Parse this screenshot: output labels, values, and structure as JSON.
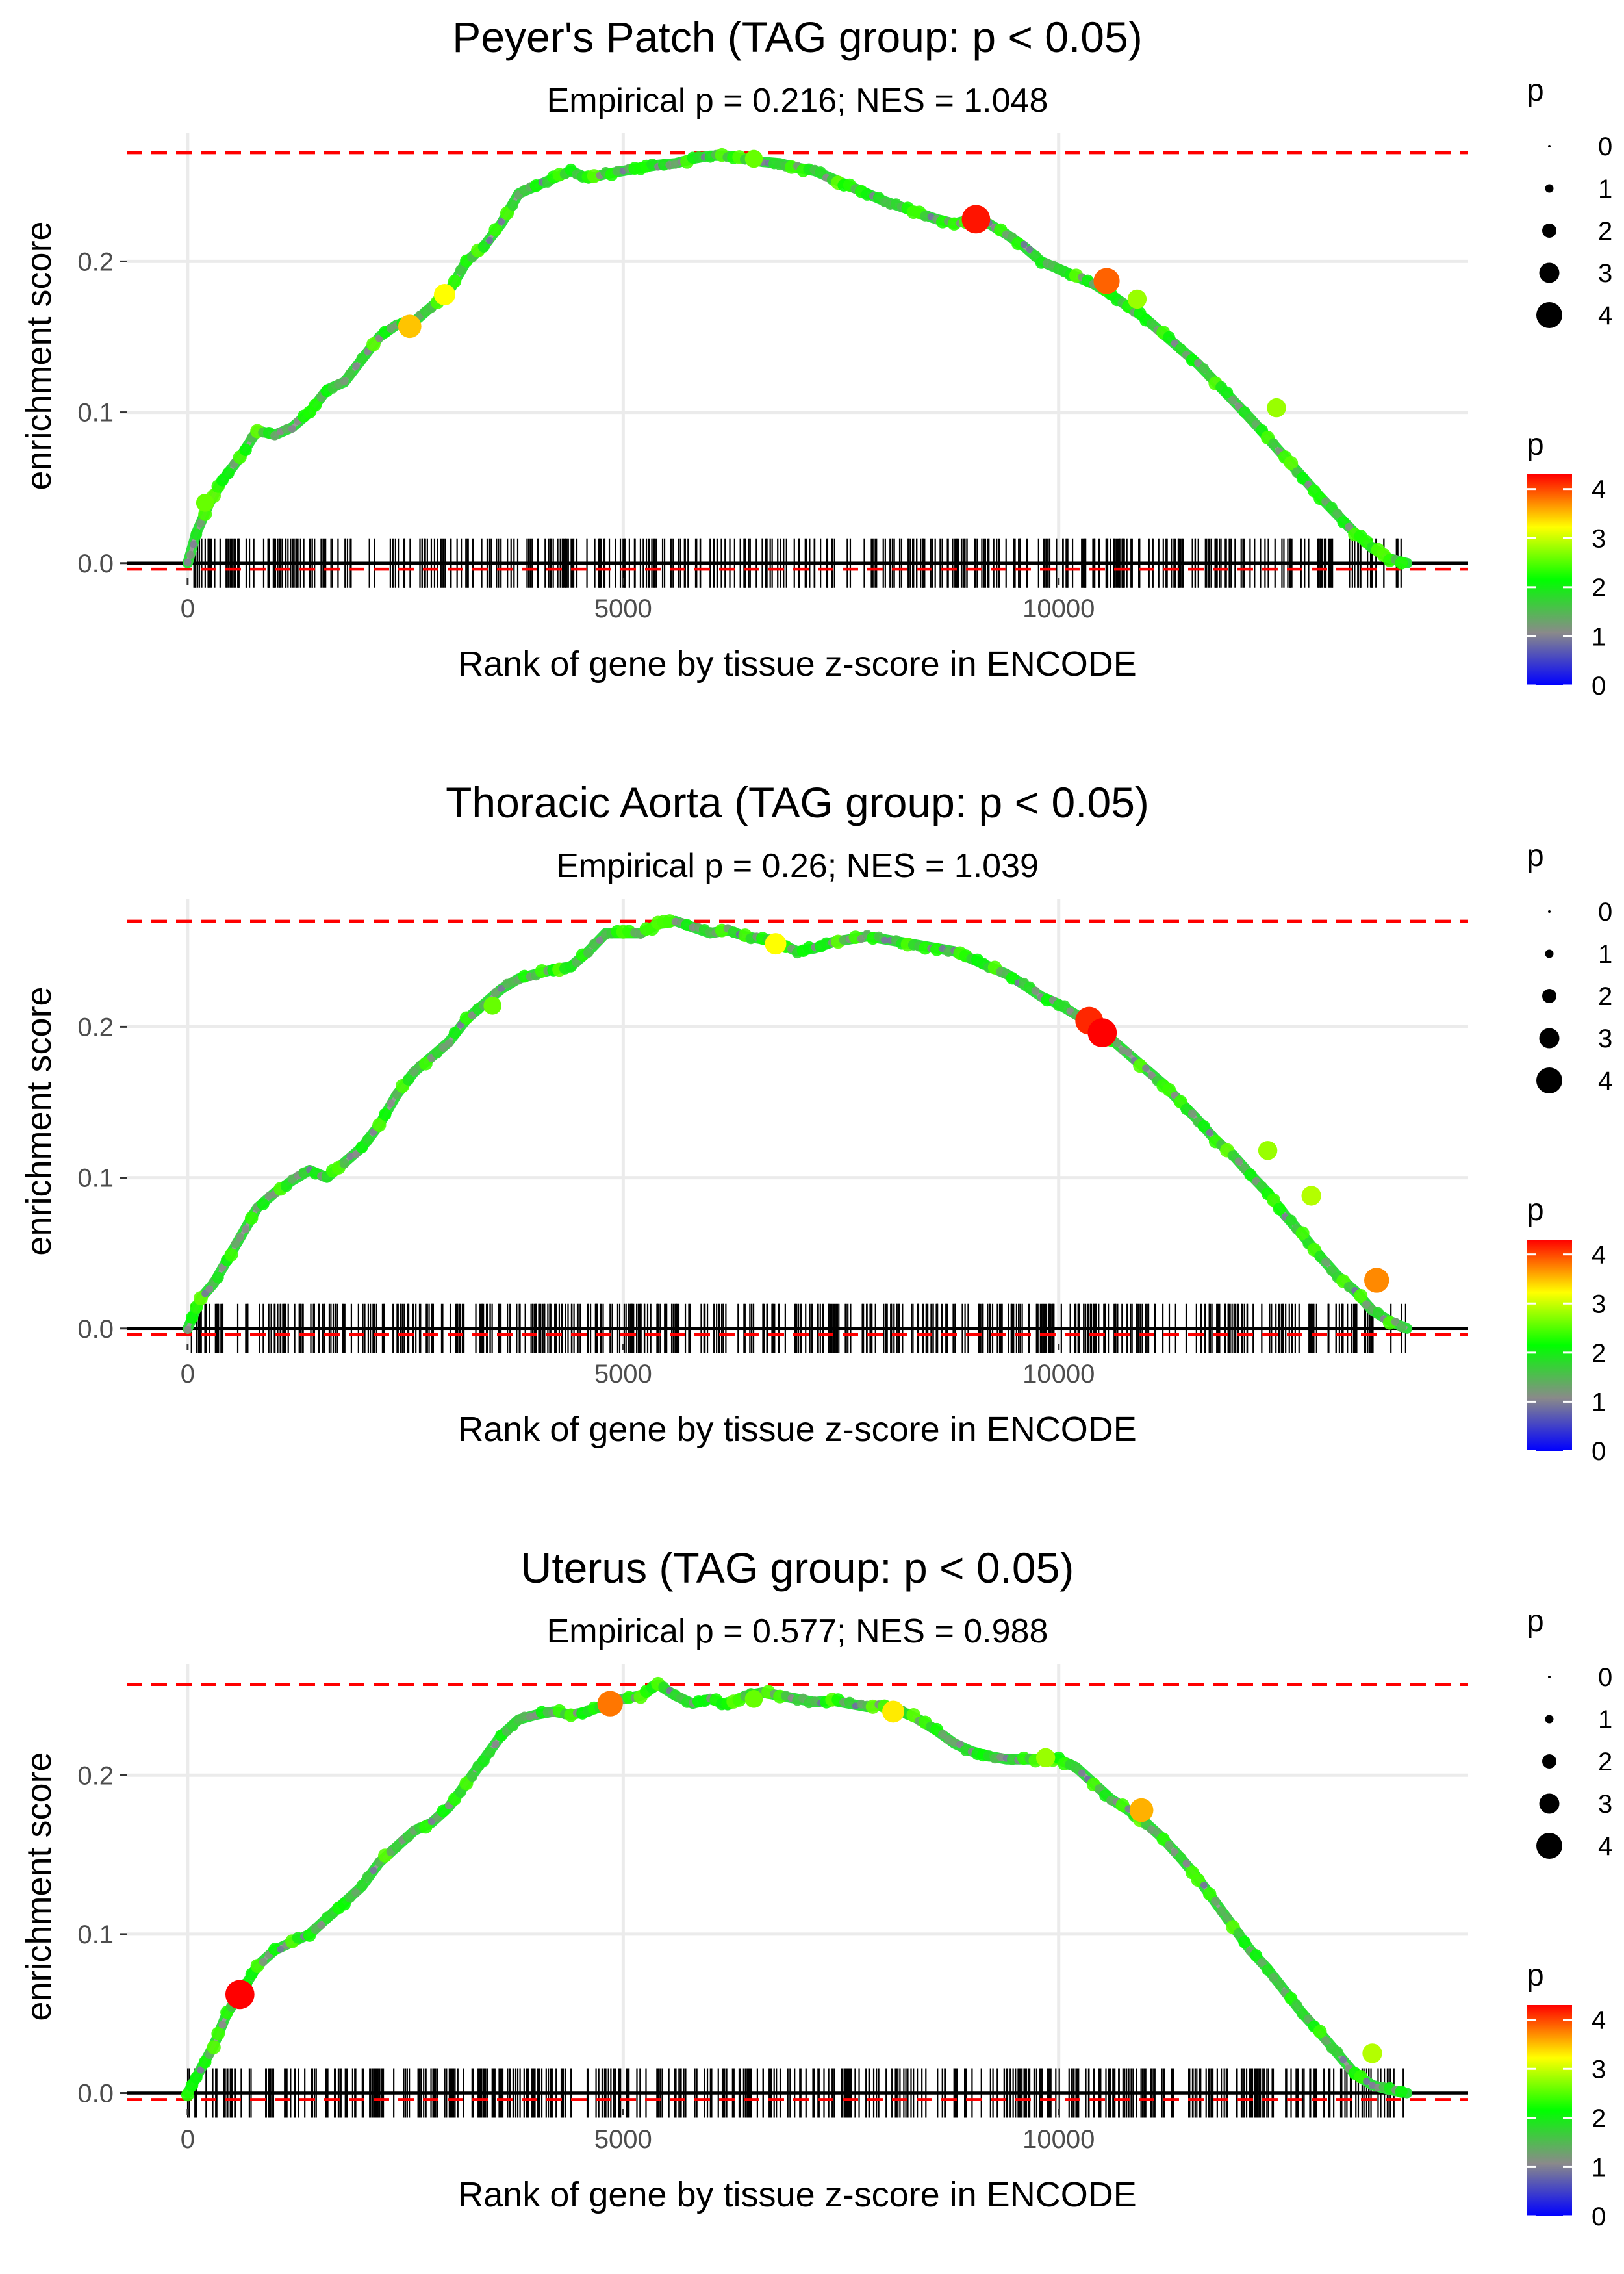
{
  "shared": {
    "xlabel": "Rank of gene by tissue z-score in ENCODE",
    "ylabel": "enrichment score",
    "x_ticks": [
      0,
      5000,
      10000
    ],
    "y_ticks": [
      0.0,
      0.1,
      0.2
    ],
    "y_tick_labels": [
      "0.0",
      "0.1",
      "0.2"
    ],
    "legend_size_title": "p",
    "legend_size_values": [
      0,
      1,
      2,
      3,
      4
    ],
    "legend_color_title": "p",
    "legend_color_ticks": [
      0,
      1,
      2,
      3,
      4
    ],
    "colors": {
      "reference_line": "#ff0000",
      "baseline": "#000000",
      "rug": "#000000",
      "gridline": "#ebebeb",
      "gradient": [
        "#0000ff",
        "#8a8a8a",
        "#00ff00",
        "#ffff00",
        "#ff0000"
      ]
    }
  },
  "chart_data": [
    {
      "type": "line",
      "title": "Peyer's Patch (TAG group: p < 0.05)",
      "subtitle": "Empirical p = 0.216; NES = 1.048",
      "xlim": [
        -700,
        14700
      ],
      "ylim": [
        -0.01,
        0.285
      ],
      "max_es": 0.272,
      "min_es": -0.004,
      "curve": {
        "x": [
          0,
          100,
          250,
          400,
          600,
          800,
          1000,
          1200,
          1400,
          1600,
          1800,
          2000,
          2200,
          2400,
          2600,
          2800,
          3000,
          3200,
          3400,
          3600,
          3800,
          4000,
          4200,
          4400,
          4600,
          4800,
          5000,
          5200,
          5400,
          5600,
          5800,
          6000,
          6200,
          6400,
          6600,
          6800,
          7000,
          7200,
          7400,
          7600,
          7800,
          8000,
          8200,
          8400,
          8600,
          8800,
          9000,
          9200,
          9400,
          9600,
          9800,
          10000,
          10200,
          10400,
          10600,
          10800,
          11000,
          11200,
          11400,
          11600,
          11800,
          12000,
          12200,
          12400,
          12600,
          12800,
          13000,
          13200,
          13400,
          13600,
          13800,
          14000
        ],
        "y": [
          0.0,
          0.02,
          0.04,
          0.055,
          0.07,
          0.088,
          0.085,
          0.09,
          0.1,
          0.115,
          0.12,
          0.135,
          0.15,
          0.158,
          0.16,
          0.17,
          0.18,
          0.2,
          0.21,
          0.225,
          0.245,
          0.25,
          0.255,
          0.26,
          0.255,
          0.258,
          0.26,
          0.262,
          0.264,
          0.265,
          0.268,
          0.27,
          0.27,
          0.268,
          0.266,
          0.265,
          0.262,
          0.26,
          0.255,
          0.25,
          0.245,
          0.24,
          0.236,
          0.232,
          0.228,
          0.225,
          0.228,
          0.225,
          0.218,
          0.21,
          0.2,
          0.195,
          0.19,
          0.185,
          0.178,
          0.17,
          0.162,
          0.152,
          0.142,
          0.132,
          0.12,
          0.108,
          0.096,
          0.083,
          0.07,
          0.057,
          0.044,
          0.032,
          0.02,
          0.01,
          0.003,
          0.0
        ]
      },
      "highlights": [
        {
          "x": 2550,
          "y": 0.157,
          "p": 3.3
        },
        {
          "x": 2950,
          "y": 0.178,
          "p": 3.0
        },
        {
          "x": 9050,
          "y": 0.228,
          "p": 4.2
        },
        {
          "x": 10550,
          "y": 0.187,
          "p": 3.8
        },
        {
          "x": 10900,
          "y": 0.175,
          "p": 2.6
        },
        {
          "x": 12500,
          "y": 0.103,
          "p": 2.6
        },
        {
          "x": 200,
          "y": 0.04,
          "p": 2.4
        },
        {
          "x": 6500,
          "y": 0.268,
          "p": 2.4
        }
      ],
      "rug_seed": 11,
      "rug_count": 420
    },
    {
      "type": "line",
      "title": "Thoracic Aorta (TAG group: p < 0.05)",
      "subtitle": "Empirical p = 0.26; NES = 1.039",
      "xlim": [
        -700,
        14700
      ],
      "ylim": [
        -0.01,
        0.285
      ],
      "max_es": 0.27,
      "min_es": -0.004,
      "curve": {
        "x": [
          0,
          150,
          300,
          450,
          600,
          800,
          1000,
          1200,
          1400,
          1600,
          1800,
          2000,
          2200,
          2400,
          2600,
          2800,
          3000,
          3200,
          3400,
          3600,
          3800,
          4000,
          4200,
          4400,
          4600,
          4800,
          5000,
          5200,
          5400,
          5600,
          5800,
          6000,
          6200,
          6400,
          6600,
          6800,
          7000,
          7200,
          7400,
          7600,
          7800,
          8000,
          8200,
          8400,
          8600,
          8800,
          9000,
          9200,
          9400,
          9600,
          9800,
          10000,
          10200,
          10400,
          10600,
          10800,
          11000,
          11200,
          11400,
          11600,
          11800,
          12000,
          12200,
          12400,
          12600,
          12800,
          13000,
          13200,
          13400,
          13600,
          13800,
          14000
        ],
        "y": [
          0.0,
          0.02,
          0.03,
          0.045,
          0.06,
          0.08,
          0.09,
          0.098,
          0.105,
          0.1,
          0.11,
          0.12,
          0.135,
          0.155,
          0.17,
          0.18,
          0.19,
          0.205,
          0.215,
          0.225,
          0.232,
          0.235,
          0.238,
          0.24,
          0.25,
          0.262,
          0.262,
          0.262,
          0.268,
          0.27,
          0.266,
          0.262,
          0.264,
          0.26,
          0.258,
          0.255,
          0.25,
          0.252,
          0.256,
          0.258,
          0.26,
          0.258,
          0.256,
          0.254,
          0.252,
          0.25,
          0.245,
          0.24,
          0.235,
          0.228,
          0.22,
          0.215,
          0.208,
          0.202,
          0.192,
          0.182,
          0.172,
          0.162,
          0.15,
          0.138,
          0.125,
          0.115,
          0.102,
          0.09,
          0.075,
          0.062,
          0.048,
          0.035,
          0.025,
          0.012,
          0.005,
          0.0
        ]
      },
      "highlights": [
        {
          "x": 10350,
          "y": 0.204,
          "p": 4.1
        },
        {
          "x": 10500,
          "y": 0.196,
          "p": 4.3
        },
        {
          "x": 6750,
          "y": 0.255,
          "p": 3.0
        },
        {
          "x": 13650,
          "y": 0.032,
          "p": 3.6
        },
        {
          "x": 12400,
          "y": 0.118,
          "p": 2.6
        },
        {
          "x": 3500,
          "y": 0.214,
          "p": 2.4
        },
        {
          "x": 12900,
          "y": 0.088,
          "p": 2.7
        }
      ],
      "rug_seed": 23,
      "rug_count": 480
    },
    {
      "type": "line",
      "title": "Uterus (TAG group: p < 0.05)",
      "subtitle": "Empirical p = 0.577; NES = 0.988",
      "xlim": [
        -700,
        14700
      ],
      "ylim": [
        -0.01,
        0.27
      ],
      "max_es": 0.257,
      "min_es": -0.004,
      "curve": {
        "x": [
          0,
          150,
          300,
          450,
          600,
          800,
          1000,
          1200,
          1400,
          1600,
          1800,
          2000,
          2200,
          2400,
          2600,
          2800,
          3000,
          3200,
          3400,
          3600,
          3800,
          4000,
          4200,
          4400,
          4600,
          4800,
          5000,
          5200,
          5400,
          5600,
          5800,
          6000,
          6200,
          6400,
          6600,
          6800,
          7000,
          7200,
          7400,
          7600,
          7800,
          8000,
          8200,
          8400,
          8600,
          8800,
          9000,
          9200,
          9400,
          9600,
          9800,
          10000,
          10200,
          10400,
          10600,
          10800,
          11000,
          11200,
          11400,
          11600,
          11800,
          12000,
          12200,
          12400,
          12600,
          12800,
          13000,
          13200,
          13400,
          13600,
          13800,
          14000
        ],
        "y": [
          0.0,
          0.015,
          0.03,
          0.05,
          0.062,
          0.08,
          0.09,
          0.095,
          0.1,
          0.11,
          0.12,
          0.13,
          0.145,
          0.155,
          0.165,
          0.17,
          0.18,
          0.195,
          0.21,
          0.225,
          0.235,
          0.238,
          0.24,
          0.238,
          0.24,
          0.245,
          0.248,
          0.25,
          0.257,
          0.25,
          0.245,
          0.248,
          0.244,
          0.25,
          0.252,
          0.25,
          0.248,
          0.246,
          0.247,
          0.245,
          0.243,
          0.244,
          0.24,
          0.235,
          0.228,
          0.22,
          0.215,
          0.212,
          0.21,
          0.21,
          0.21,
          0.21,
          0.205,
          0.195,
          0.185,
          0.178,
          0.17,
          0.16,
          0.148,
          0.135,
          0.12,
          0.105,
          0.09,
          0.078,
          0.064,
          0.05,
          0.038,
          0.025,
          0.012,
          0.005,
          0.002,
          0.0
        ]
      },
      "highlights": [
        {
          "x": 600,
          "y": 0.062,
          "p": 4.3
        },
        {
          "x": 4850,
          "y": 0.245,
          "p": 3.7
        },
        {
          "x": 10950,
          "y": 0.178,
          "p": 3.4
        },
        {
          "x": 8100,
          "y": 0.24,
          "p": 3.1
        },
        {
          "x": 9850,
          "y": 0.211,
          "p": 2.6
        },
        {
          "x": 6500,
          "y": 0.248,
          "p": 2.4
        },
        {
          "x": 13600,
          "y": 0.025,
          "p": 2.7
        }
      ],
      "rug_seed": 37,
      "rug_count": 460
    }
  ]
}
